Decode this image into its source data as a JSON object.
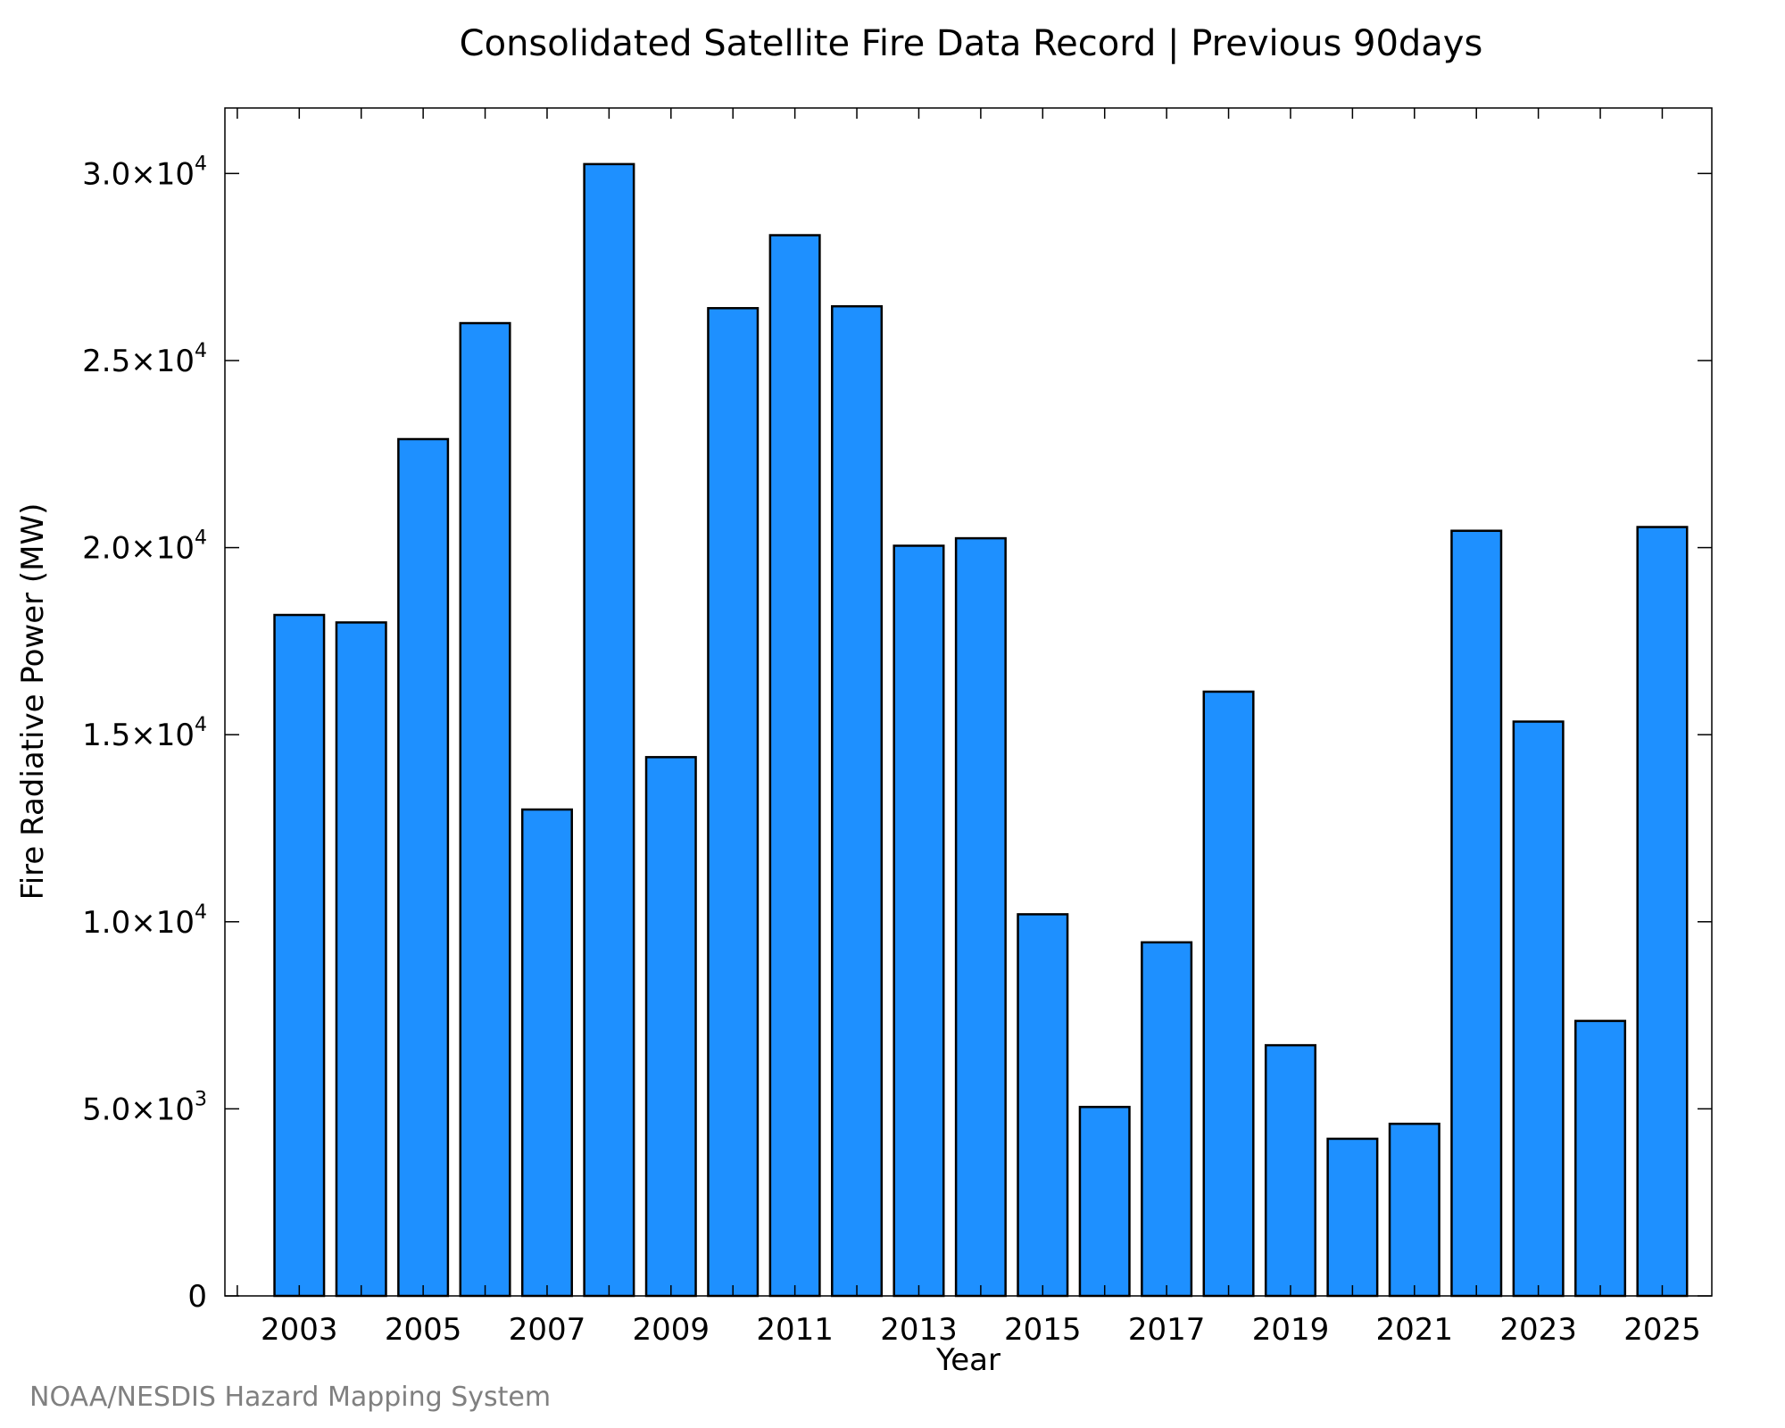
{
  "chart_data": {
    "type": "bar",
    "title": "Consolidated Satellite Fire Data Record | Previous 90days",
    "xlabel": "Year",
    "ylabel": "Fire Radiative Power (MW)",
    "categories": [
      "2003",
      "2004",
      "2005",
      "2006",
      "2007",
      "2008",
      "2009",
      "2010",
      "2011",
      "2012",
      "2013",
      "2014",
      "2015",
      "2016",
      "2017",
      "2018",
      "2019",
      "2020",
      "2021",
      "2022",
      "2023",
      "2024",
      "2025"
    ],
    "values": [
      18200,
      18000,
      22900,
      26000,
      13000,
      30250,
      14400,
      26400,
      28350,
      26450,
      20050,
      20250,
      10200,
      5050,
      9450,
      16150,
      6700,
      4200,
      4600,
      20450,
      15350,
      7350,
      20550
    ],
    "xtick_labels": [
      "2003",
      "2005",
      "2007",
      "2009",
      "2011",
      "2013",
      "2015",
      "2017",
      "2019",
      "2021",
      "2023",
      "2025"
    ],
    "yticks": [
      {
        "value": 0,
        "mantissa": "0",
        "exp": ""
      },
      {
        "value": 5000,
        "mantissa": "5.0×10",
        "exp": "3"
      },
      {
        "value": 10000,
        "mantissa": "1.0×10",
        "exp": "4"
      },
      {
        "value": 15000,
        "mantissa": "1.5×10",
        "exp": "4"
      },
      {
        "value": 20000,
        "mantissa": "2.0×10",
        "exp": "4"
      },
      {
        "value": 25000,
        "mantissa": "2.5×10",
        "exp": "4"
      },
      {
        "value": 30000,
        "mantissa": "3.0×10",
        "exp": "4"
      }
    ],
    "ylim": [
      0,
      31750
    ],
    "xlim": [
      2001.8,
      2025.8
    ],
    "grid": false,
    "bar_color": "#1e90ff",
    "bar_edge_color": "#000000"
  },
  "credit": "NOAA/NESDIS Hazard Mapping System"
}
